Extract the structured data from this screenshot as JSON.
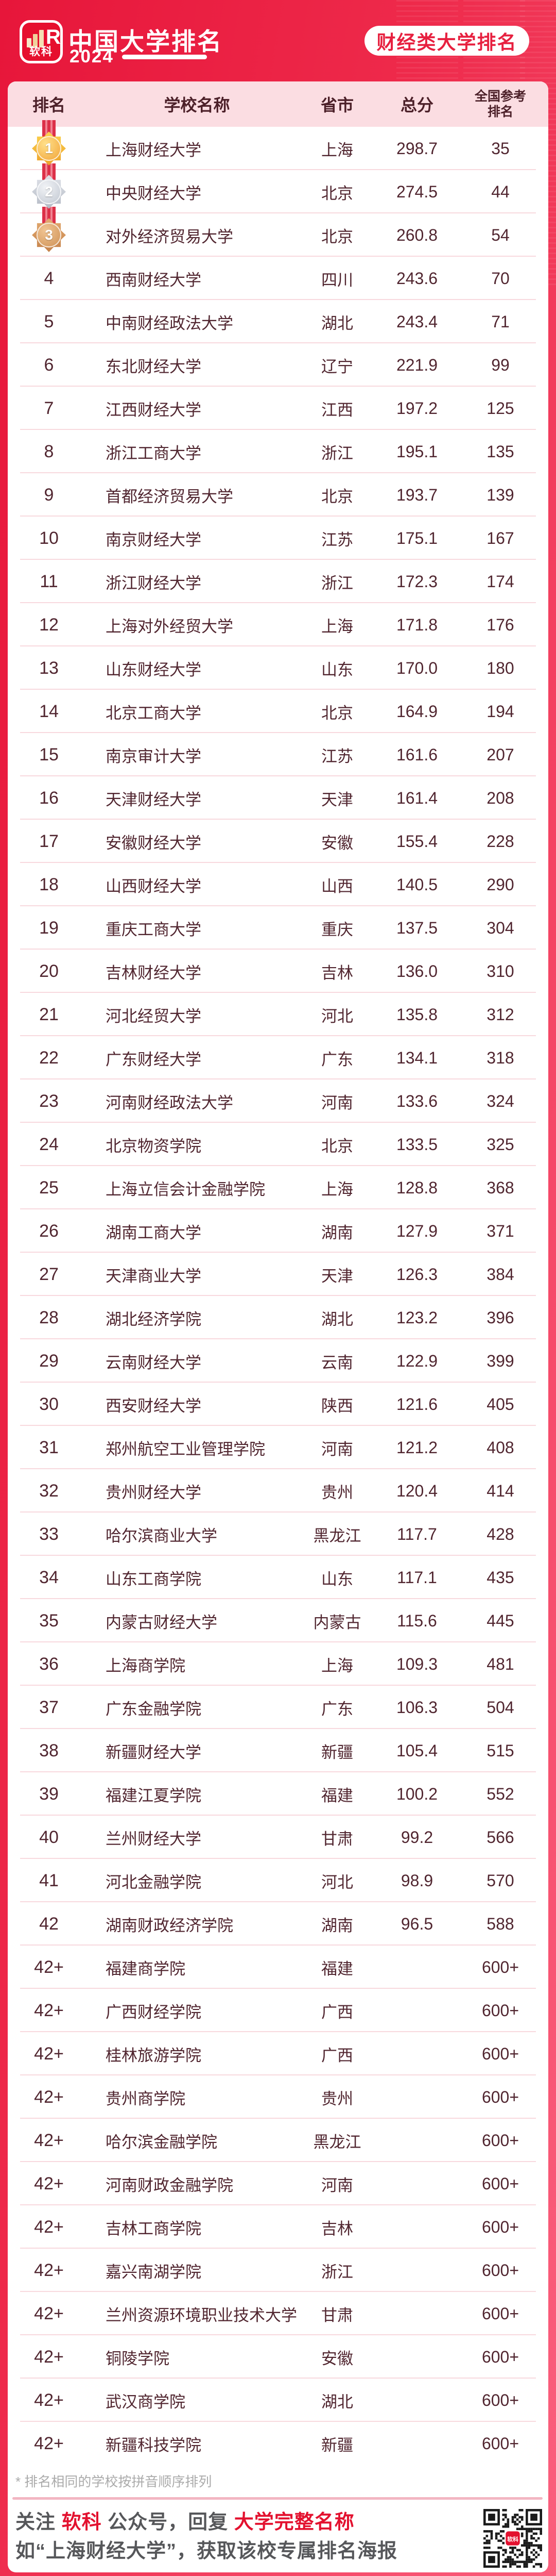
{
  "brand": {
    "logo_text": "软科",
    "logo_r": "R",
    "title": "中国大学排名",
    "year": "2024",
    "badge": "财经类大学排名"
  },
  "colors": {
    "background_red": "#e7163a",
    "background_pink": "#fa5f7d",
    "header_band": "#fbdde2",
    "table_text": "#512630",
    "accent_red": "#e3112f"
  },
  "table": {
    "columns": {
      "rank": "排名",
      "school": "学校名称",
      "province": "省市",
      "score": "总分",
      "national_line1": "全国参考",
      "national_line2": "排名"
    },
    "rows": [
      {
        "rank": "1",
        "medal": "gold",
        "school": "上海财经大学",
        "province": "上海",
        "score": "298.7",
        "national": "35"
      },
      {
        "rank": "2",
        "medal": "silver",
        "school": "中央财经大学",
        "province": "北京",
        "score": "274.5",
        "national": "44"
      },
      {
        "rank": "3",
        "medal": "bronze",
        "school": "对外经济贸易大学",
        "province": "北京",
        "score": "260.8",
        "national": "54"
      },
      {
        "rank": "4",
        "medal": null,
        "school": "西南财经大学",
        "province": "四川",
        "score": "243.6",
        "national": "70"
      },
      {
        "rank": "5",
        "medal": null,
        "school": "中南财经政法大学",
        "province": "湖北",
        "score": "243.4",
        "national": "71"
      },
      {
        "rank": "6",
        "medal": null,
        "school": "东北财经大学",
        "province": "辽宁",
        "score": "221.9",
        "national": "99"
      },
      {
        "rank": "7",
        "medal": null,
        "school": "江西财经大学",
        "province": "江西",
        "score": "197.2",
        "national": "125"
      },
      {
        "rank": "8",
        "medal": null,
        "school": "浙江工商大学",
        "province": "浙江",
        "score": "195.1",
        "national": "135"
      },
      {
        "rank": "9",
        "medal": null,
        "school": "首都经济贸易大学",
        "province": "北京",
        "score": "193.7",
        "national": "139"
      },
      {
        "rank": "10",
        "medal": null,
        "school": "南京财经大学",
        "province": "江苏",
        "score": "175.1",
        "national": "167"
      },
      {
        "rank": "11",
        "medal": null,
        "school": "浙江财经大学",
        "province": "浙江",
        "score": "172.3",
        "national": "174"
      },
      {
        "rank": "12",
        "medal": null,
        "school": "上海对外经贸大学",
        "province": "上海",
        "score": "171.8",
        "national": "176"
      },
      {
        "rank": "13",
        "medal": null,
        "school": "山东财经大学",
        "province": "山东",
        "score": "170.0",
        "national": "180"
      },
      {
        "rank": "14",
        "medal": null,
        "school": "北京工商大学",
        "province": "北京",
        "score": "164.9",
        "national": "194"
      },
      {
        "rank": "15",
        "medal": null,
        "school": "南京审计大学",
        "province": "江苏",
        "score": "161.6",
        "national": "207"
      },
      {
        "rank": "16",
        "medal": null,
        "school": "天津财经大学",
        "province": "天津",
        "score": "161.4",
        "national": "208"
      },
      {
        "rank": "17",
        "medal": null,
        "school": "安徽财经大学",
        "province": "安徽",
        "score": "155.4",
        "national": "228"
      },
      {
        "rank": "18",
        "medal": null,
        "school": "山西财经大学",
        "province": "山西",
        "score": "140.5",
        "national": "290"
      },
      {
        "rank": "19",
        "medal": null,
        "school": "重庆工商大学",
        "province": "重庆",
        "score": "137.5",
        "national": "304"
      },
      {
        "rank": "20",
        "medal": null,
        "school": "吉林财经大学",
        "province": "吉林",
        "score": "136.0",
        "national": "310"
      },
      {
        "rank": "21",
        "medal": null,
        "school": "河北经贸大学",
        "province": "河北",
        "score": "135.8",
        "national": "312"
      },
      {
        "rank": "22",
        "medal": null,
        "school": "广东财经大学",
        "province": "广东",
        "score": "134.1",
        "national": "318"
      },
      {
        "rank": "23",
        "medal": null,
        "school": "河南财经政法大学",
        "province": "河南",
        "score": "133.6",
        "national": "324"
      },
      {
        "rank": "24",
        "medal": null,
        "school": "北京物资学院",
        "province": "北京",
        "score": "133.5",
        "national": "325"
      },
      {
        "rank": "25",
        "medal": null,
        "school": "上海立信会计金融学院",
        "province": "上海",
        "score": "128.8",
        "national": "368"
      },
      {
        "rank": "26",
        "medal": null,
        "school": "湖南工商大学",
        "province": "湖南",
        "score": "127.9",
        "national": "371"
      },
      {
        "rank": "27",
        "medal": null,
        "school": "天津商业大学",
        "province": "天津",
        "score": "126.3",
        "national": "384"
      },
      {
        "rank": "28",
        "medal": null,
        "school": "湖北经济学院",
        "province": "湖北",
        "score": "123.2",
        "national": "396"
      },
      {
        "rank": "29",
        "medal": null,
        "school": "云南财经大学",
        "province": "云南",
        "score": "122.9",
        "national": "399"
      },
      {
        "rank": "30",
        "medal": null,
        "school": "西安财经大学",
        "province": "陕西",
        "score": "121.6",
        "national": "405"
      },
      {
        "rank": "31",
        "medal": null,
        "school": "郑州航空工业管理学院",
        "province": "河南",
        "score": "121.2",
        "national": "408"
      },
      {
        "rank": "32",
        "medal": null,
        "school": "贵州财经大学",
        "province": "贵州",
        "score": "120.4",
        "national": "414"
      },
      {
        "rank": "33",
        "medal": null,
        "school": "哈尔滨商业大学",
        "province": "黑龙江",
        "score": "117.7",
        "national": "428"
      },
      {
        "rank": "34",
        "medal": null,
        "school": "山东工商学院",
        "province": "山东",
        "score": "117.1",
        "national": "435"
      },
      {
        "rank": "35",
        "medal": null,
        "school": "内蒙古财经大学",
        "province": "内蒙古",
        "score": "115.6",
        "national": "445"
      },
      {
        "rank": "36",
        "medal": null,
        "school": "上海商学院",
        "province": "上海",
        "score": "109.3",
        "national": "481"
      },
      {
        "rank": "37",
        "medal": null,
        "school": "广东金融学院",
        "province": "广东",
        "score": "106.3",
        "national": "504"
      },
      {
        "rank": "38",
        "medal": null,
        "school": "新疆财经大学",
        "province": "新疆",
        "score": "105.4",
        "national": "515"
      },
      {
        "rank": "39",
        "medal": null,
        "school": "福建江夏学院",
        "province": "福建",
        "score": "100.2",
        "national": "552"
      },
      {
        "rank": "40",
        "medal": null,
        "school": "兰州财经大学",
        "province": "甘肃",
        "score": "99.2",
        "national": "566"
      },
      {
        "rank": "41",
        "medal": null,
        "school": "河北金融学院",
        "province": "河北",
        "score": "98.9",
        "national": "570"
      },
      {
        "rank": "42",
        "medal": null,
        "school": "湖南财政经济学院",
        "province": "湖南",
        "score": "96.5",
        "national": "588"
      },
      {
        "rank": "42+",
        "medal": null,
        "school": "福建商学院",
        "province": "福建",
        "score": "",
        "national": "600+"
      },
      {
        "rank": "42+",
        "medal": null,
        "school": "广西财经学院",
        "province": "广西",
        "score": "",
        "national": "600+"
      },
      {
        "rank": "42+",
        "medal": null,
        "school": "桂林旅游学院",
        "province": "广西",
        "score": "",
        "national": "600+"
      },
      {
        "rank": "42+",
        "medal": null,
        "school": "贵州商学院",
        "province": "贵州",
        "score": "",
        "national": "600+"
      },
      {
        "rank": "42+",
        "medal": null,
        "school": "哈尔滨金融学院",
        "province": "黑龙江",
        "score": "",
        "national": "600+"
      },
      {
        "rank": "42+",
        "medal": null,
        "school": "河南财政金融学院",
        "province": "河南",
        "score": "",
        "national": "600+"
      },
      {
        "rank": "42+",
        "medal": null,
        "school": "吉林工商学院",
        "province": "吉林",
        "score": "",
        "national": "600+"
      },
      {
        "rank": "42+",
        "medal": null,
        "school": "嘉兴南湖学院",
        "province": "浙江",
        "score": "",
        "national": "600+"
      },
      {
        "rank": "42+",
        "medal": null,
        "school": "兰州资源环境职业技术大学",
        "province": "甘肃",
        "score": "",
        "national": "600+"
      },
      {
        "rank": "42+",
        "medal": null,
        "school": "铜陵学院",
        "province": "安徽",
        "score": "",
        "national": "600+"
      },
      {
        "rank": "42+",
        "medal": null,
        "school": "武汉商学院",
        "province": "湖北",
        "score": "",
        "national": "600+"
      },
      {
        "rank": "42+",
        "medal": null,
        "school": "新疆科技学院",
        "province": "新疆",
        "score": "",
        "national": "600+"
      }
    ]
  },
  "footnote": "* 排名相同的学校按拼音顺序排列",
  "footer": {
    "line1_parts": [
      {
        "text": "关注 ",
        "red": false
      },
      {
        "text": "软科",
        "red": true
      },
      {
        "text": " 公众号，回复 ",
        "red": false
      },
      {
        "text": "大学完整名称",
        "red": true
      }
    ],
    "line2": "如“上海财经大学”，获取该校专属排名海报",
    "qr_label": "软科"
  }
}
